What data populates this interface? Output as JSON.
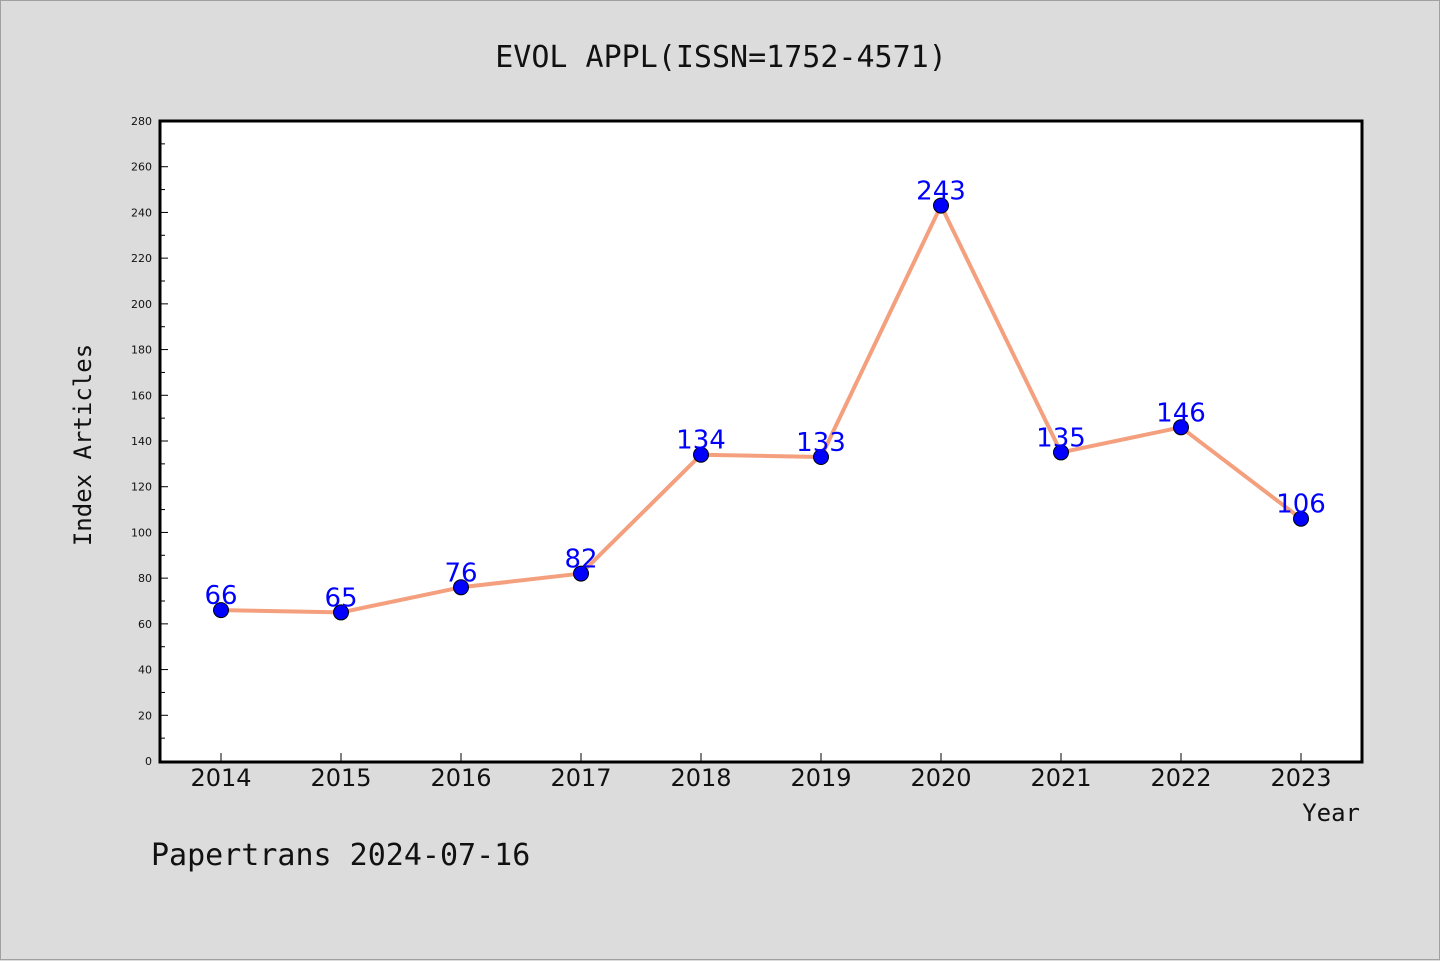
{
  "chart_data": {
    "type": "line",
    "title": "EVOL APPL(ISSN=1752-4571)",
    "xlabel": "Year",
    "ylabel": "Index Articles",
    "categories": [
      "2014",
      "2015",
      "2016",
      "2017",
      "2018",
      "2019",
      "2020",
      "2021",
      "2022",
      "2023"
    ],
    "series": [
      {
        "values": [
          66,
          65,
          76,
          82,
          134,
          133,
          243,
          135,
          146,
          106
        ]
      }
    ],
    "data_labels": [
      "66",
      "65",
      "76",
      "82",
      "134",
      "133",
      "243",
      "135",
      "146",
      "106"
    ],
    "ylim": [
      0,
      280
    ],
    "yticks": [
      "0",
      "20",
      "40",
      "60",
      "80",
      "100",
      "120",
      "140",
      "160",
      "180",
      "200",
      "220",
      "240",
      "260",
      "280"
    ],
    "grid": false,
    "line_color": "#f4a07e",
    "marker_color": "#0000ff",
    "label_color": "#0000ff"
  },
  "footer": {
    "text": "Papertrans 2024-07-16"
  }
}
